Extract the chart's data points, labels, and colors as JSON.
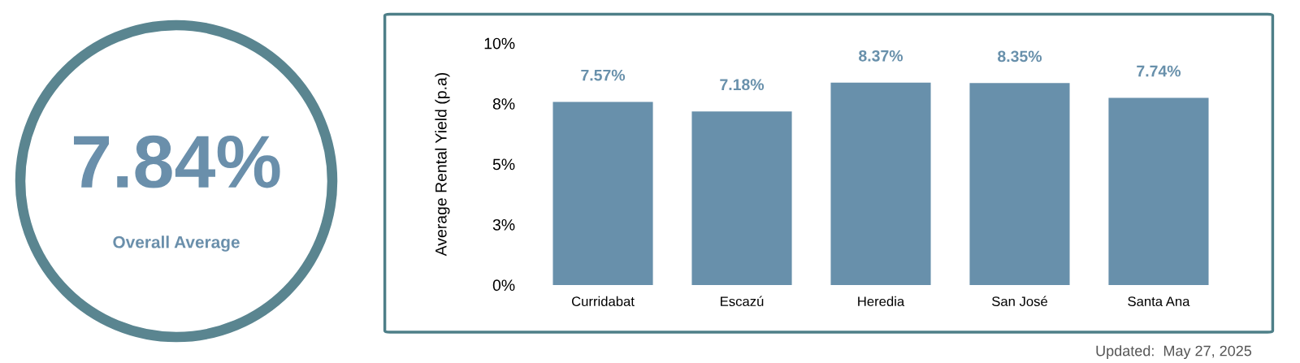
{
  "chart_data": [
    {
      "type": "other",
      "title": "7.84%",
      "subtitle": "Overall Average"
    },
    {
      "type": "bar",
      "ylabel": "Average Rental Yield (p.a)",
      "categories": [
        "Curridabat",
        "Escazú",
        "Heredia",
        "San José",
        "Santa Ana"
      ],
      "values": [
        7.57,
        7.18,
        8.37,
        8.35,
        7.74
      ],
      "color": "#6890ab",
      "value_labels": [
        "7.57%",
        "7.18%",
        "8.37%",
        "8.35%",
        "7.74%"
      ],
      "ylim": [
        0,
        10
      ],
      "yticks": [
        {
          "value": 0,
          "label": "0%"
        },
        {
          "value": 2.5,
          "label": "3%"
        },
        {
          "value": 5,
          "label": "5%"
        },
        {
          "value": 7.5,
          "label": "8%"
        },
        {
          "value": 10,
          "label": "10%"
        }
      ],
      "grid": false,
      "annotations": [
        "Updated:  May 27, 2025"
      ]
    }
  ]
}
